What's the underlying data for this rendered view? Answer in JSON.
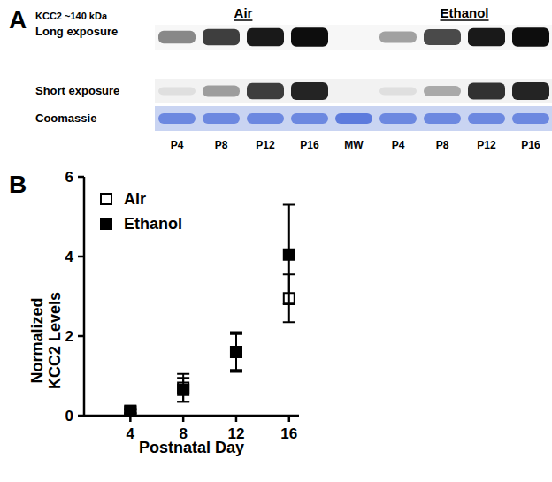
{
  "panel_a": {
    "label": "A",
    "protein": "KCC2 ~140 kDa",
    "groups": [
      {
        "name": "Air",
        "lanes": [
          "P4",
          "P8",
          "P12",
          "P16"
        ]
      },
      {
        "name": null,
        "lanes": [
          "MW"
        ]
      },
      {
        "name": "Ethanol",
        "lanes": [
          "P4",
          "P8",
          "P12",
          "P16"
        ]
      }
    ],
    "rows": [
      {
        "label": "Long exposure",
        "color": "#000000",
        "intensity": [
          0.45,
          0.75,
          0.9,
          0.95,
          null,
          0.35,
          0.7,
          0.9,
          0.95
        ]
      },
      {
        "label": "Short exposure",
        "color": "#000000",
        "intensity": [
          0.08,
          0.35,
          0.75,
          0.85,
          null,
          0.08,
          0.3,
          0.8,
          0.85
        ]
      },
      {
        "label": "Coomassie",
        "color": "#2f55d4",
        "intensity": [
          0.6,
          0.6,
          0.6,
          0.6,
          0.7,
          0.6,
          0.6,
          0.6,
          0.6
        ]
      }
    ]
  },
  "chart_data": {
    "type": "scatter",
    "label": "B",
    "xlabel": "Postnatal Day",
    "ylabel": [
      "Normalized",
      "KCC2 Levels"
    ],
    "x": [
      4,
      8,
      12,
      16
    ],
    "xlim": [
      0.5,
      16.75
    ],
    "xticks": [
      4,
      8,
      12,
      16
    ],
    "ylim": [
      0,
      6
    ],
    "yticks": [
      0,
      2,
      4,
      6
    ],
    "legend": "upper left",
    "series": [
      {
        "name": "Air",
        "color": "#000000",
        "marker": "square-open",
        "values": [
          0.1,
          0.7,
          1.6,
          2.95
        ],
        "errors": [
          0.05,
          0.35,
          0.45,
          0.6
        ]
      },
      {
        "name": "Ethanol",
        "color": "#000000",
        "marker": "square",
        "values": [
          0.12,
          0.65,
          1.6,
          4.05
        ],
        "errors": [
          0.05,
          0.3,
          0.5,
          1.25
        ]
      }
    ]
  }
}
